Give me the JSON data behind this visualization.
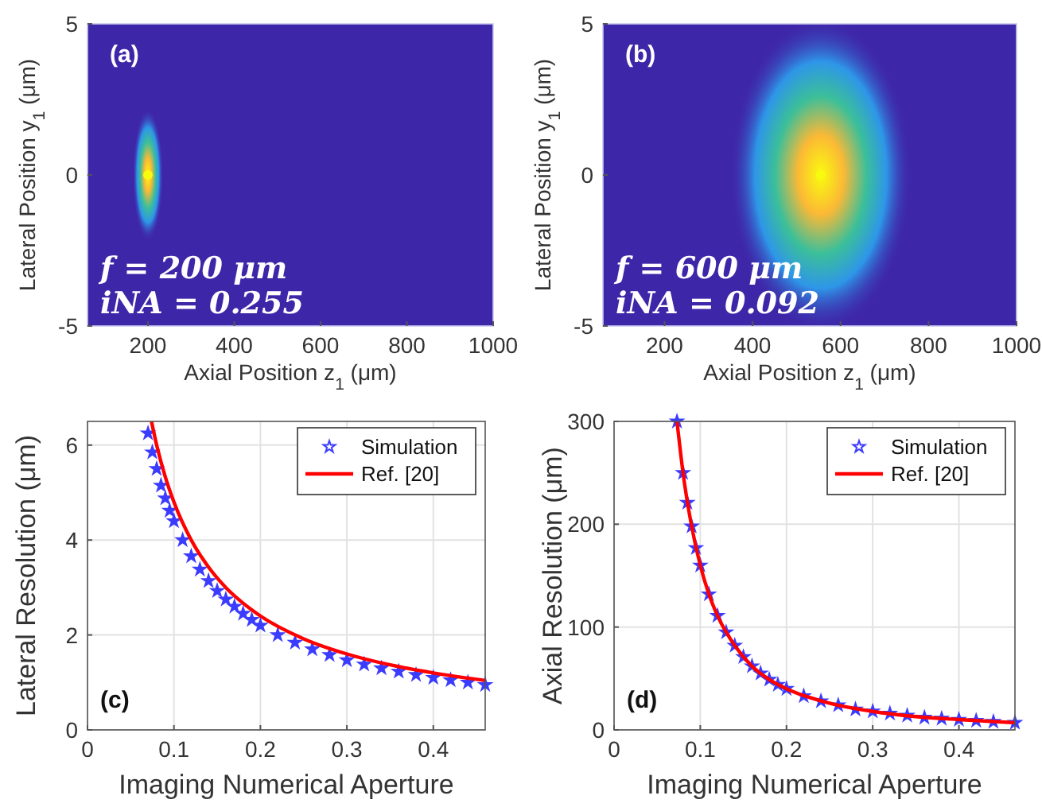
{
  "chart_data": [
    {
      "type": "scatter",
      "xlabel": "Axial Position z$_{1}$ (μm)",
      "ylabel": "Lateral Position y$_{1}$ (μm)",
      "xlim": [
        60,
        1000
      ],
      "ylim": [
        -5,
        5
      ],
      "xticks": [
        200,
        400,
        600,
        800,
        1000
      ],
      "yticks": [
        -5,
        0,
        5
      ],
      "annotations": [
        "(a)",
        "f = 200 μm",
        "iNA = 0.255"
      ],
      "series": [
        {
          "type": "scatter",
          "marker": "circle",
          "color": "#f9fb0e",
          "x": [
            200
          ],
          "values": [
            0
          ]
        }
      ]
    },
    {
      "type": "scatter",
      "xlabel": "Axial Position z$_{1}$ (μm)",
      "ylabel": "Lateral Position y$_{1}$ (μm)",
      "xlim": [
        60,
        1000
      ],
      "ylim": [
        -5,
        5
      ],
      "xticks": [
        200,
        400,
        600,
        800,
        1000
      ],
      "yticks": [
        -5,
        0,
        5
      ],
      "annotations": [
        "(b)",
        "f = 600 μm",
        "iNA = 0.092"
      ],
      "series": [
        {
          "type": "scatter",
          "marker": "circle",
          "color": "#f9fb0e",
          "x": [
            555
          ],
          "values": [
            0
          ]
        }
      ]
    },
    {
      "type": "line",
      "xlabel": "Imaging Numerical Aperture",
      "ylabel": "Lateral Resolution (μm)",
      "xlim": [
        0,
        0.46
      ],
      "ylim": [
        0,
        6.5
      ],
      "xticks": [
        0,
        0.1,
        0.2,
        0.3,
        0.4
      ],
      "yticks": [
        0,
        2,
        4,
        6
      ],
      "grid": true,
      "legend": "top right",
      "annotations": [
        "(c)"
      ],
      "series": [
        {
          "name": "Simulation",
          "type": "scatter",
          "marker": "star",
          "color": "#3c3cff",
          "x": [
            0.07,
            0.075,
            0.08,
            0.085,
            0.09,
            0.095,
            0.1,
            0.11,
            0.12,
            0.13,
            0.14,
            0.15,
            0.16,
            0.17,
            0.18,
            0.19,
            0.2,
            0.22,
            0.24,
            0.26,
            0.28,
            0.3,
            0.32,
            0.34,
            0.36,
            0.38,
            0.4,
            0.42,
            0.44,
            0.46
          ],
          "values": [
            6.25,
            5.85,
            5.5,
            5.15,
            4.88,
            4.62,
            4.4,
            4.0,
            3.66,
            3.38,
            3.14,
            2.93,
            2.75,
            2.6,
            2.45,
            2.32,
            2.2,
            2.0,
            1.84,
            1.7,
            1.58,
            1.47,
            1.38,
            1.3,
            1.23,
            1.16,
            1.1,
            1.05,
            1.0,
            0.95
          ]
        },
        {
          "name": "Ref. [20]",
          "type": "line",
          "color": "#ff0000",
          "x": [
            0.074,
            0.08,
            0.09,
            0.1,
            0.12,
            0.14,
            0.16,
            0.18,
            0.2,
            0.25,
            0.3,
            0.35,
            0.4,
            0.46
          ],
          "values": [
            6.5,
            6.0,
            5.33,
            4.8,
            4.0,
            3.43,
            3.0,
            2.67,
            2.4,
            1.92,
            1.6,
            1.37,
            1.2,
            1.04
          ]
        }
      ]
    },
    {
      "type": "line",
      "xlabel": "Imaging Numerical Aperture",
      "ylabel": "Axial Resolution (μm)",
      "xlim": [
        0,
        0.465
      ],
      "ylim": [
        0,
        300
      ],
      "xticks": [
        0,
        0.1,
        0.2,
        0.3,
        0.4
      ],
      "yticks": [
        0,
        100,
        200,
        300
      ],
      "grid": true,
      "legend": "top right",
      "annotations": [
        "(d)"
      ],
      "series": [
        {
          "name": "Simulation",
          "type": "scatter",
          "marker": "star",
          "color": "#3c3cff",
          "x": [
            0.073,
            0.08,
            0.085,
            0.09,
            0.095,
            0.1,
            0.11,
            0.12,
            0.13,
            0.14,
            0.15,
            0.16,
            0.17,
            0.18,
            0.19,
            0.2,
            0.22,
            0.24,
            0.26,
            0.28,
            0.3,
            0.32,
            0.34,
            0.36,
            0.38,
            0.4,
            0.42,
            0.44,
            0.465
          ],
          "values": [
            300,
            250,
            221,
            198,
            177,
            160,
            132,
            111,
            95,
            82,
            71,
            62,
            55,
            49,
            44,
            40,
            33,
            28,
            24,
            20,
            18,
            16,
            14,
            12,
            11,
            10,
            9,
            8,
            7
          ]
        },
        {
          "name": "Ref. [20]",
          "type": "line",
          "color": "#ff0000",
          "x": [
            0.073,
            0.08,
            0.09,
            0.1,
            0.11,
            0.12,
            0.14,
            0.16,
            0.18,
            0.2,
            0.25,
            0.3,
            0.35,
            0.4,
            0.465
          ],
          "values": [
            300,
            250,
            198,
            160,
            132,
            111,
            82,
            62,
            49,
            40,
            26,
            18,
            13,
            10,
            7
          ]
        }
      ]
    }
  ]
}
